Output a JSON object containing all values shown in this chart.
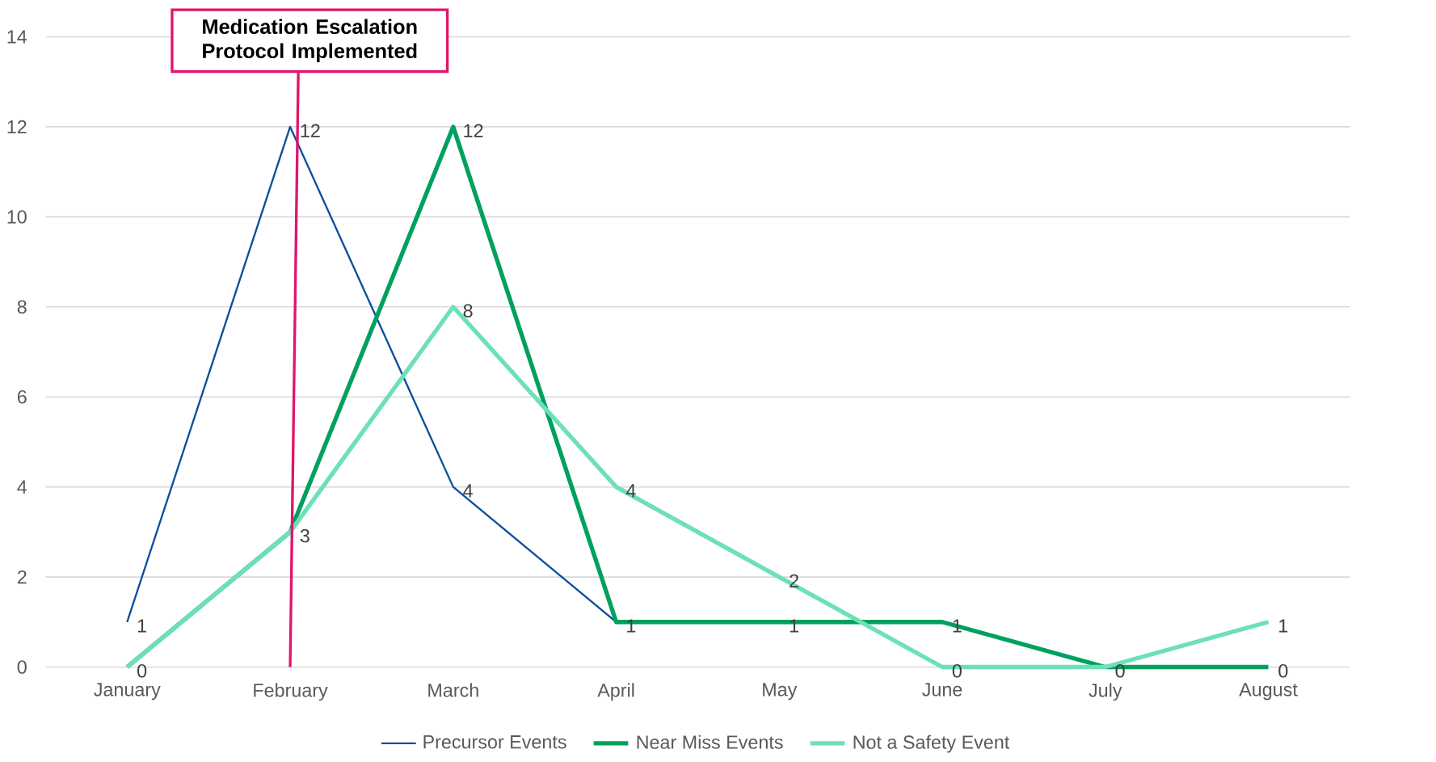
{
  "chart_data": {
    "type": "line",
    "categories": [
      "January",
      "February",
      "March",
      "April",
      "May",
      "June",
      "July",
      "August"
    ],
    "series": [
      {
        "name": "Precursor Events",
        "color": "#0b4f9c",
        "values": [
          1,
          12,
          4,
          1,
          null,
          null,
          null,
          null
        ],
        "value_labels": [
          "1",
          "12",
          "4",
          null,
          null,
          null,
          null,
          null
        ]
      },
      {
        "name": "Near Miss Events",
        "color": "#00a060",
        "values": [
          0,
          3,
          12,
          1,
          1,
          1,
          0,
          0
        ],
        "value_labels": [
          null,
          null,
          "12",
          "1",
          "1",
          "1",
          "0",
          "0"
        ]
      },
      {
        "name": "Not a Safety Event",
        "color": "#6ee0b8",
        "values": [
          0,
          3,
          8,
          4,
          2,
          0,
          0,
          1
        ],
        "value_labels": [
          "0",
          "3",
          "8",
          "4",
          "2",
          "0",
          null,
          "1"
        ]
      }
    ],
    "ylim": [
      0,
      14
    ],
    "yticks": [
      0,
      2,
      4,
      6,
      8,
      10,
      12,
      14
    ],
    "grid": "y",
    "legend": "bottom",
    "marker": "none",
    "line_style": "solid",
    "annotations": [
      "Medication Escalation Protocol Implemented"
    ]
  }
}
